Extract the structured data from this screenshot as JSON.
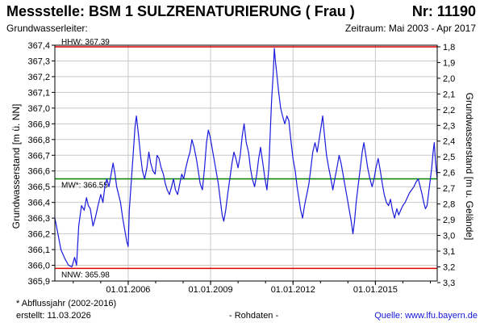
{
  "header": {
    "title": "Messstelle: BSM 1 SULZRENATURIERUNG ( Frau )",
    "nr": "Nr: 11190",
    "sub_left": "Grundwasserleiter:",
    "sub_right": "Zeitraum: Mai 2003 - Apr 2017"
  },
  "footer": {
    "note": "* Abflussjahr (2002-2016)",
    "created": "erstellt:  11.03.2026",
    "mode": "- Rohdaten -",
    "source": "Quelle: www.lfu.bayern.de"
  },
  "colors": {
    "series": "#1a1adc",
    "limit": "#e00000",
    "mean": "#008000",
    "grid": "#c8c8c8",
    "axis": "#000000"
  },
  "chart_data": {
    "type": "line",
    "ylabel_left": "Grundwasserstand [m ü. NN]",
    "ylabel_right": "Grundwasserstand [m u. Gelände]",
    "xlim": [
      2003.33,
      2017.25
    ],
    "ylim": [
      365.9,
      367.4
    ],
    "y_ticks": [
      365.9,
      366.0,
      366.1,
      366.2,
      366.3,
      366.4,
      366.5,
      366.6,
      366.7,
      366.8,
      366.9,
      367.0,
      367.1,
      367.2,
      367.3,
      367.4
    ],
    "y_tick_labels": [
      "365,9",
      "366,0",
      "366,1",
      "366,2",
      "366,3",
      "366,4",
      "366,5",
      "366,6",
      "366,7",
      "366,8",
      "366,9",
      "367,0",
      "367,1",
      "367,2",
      "367,3",
      "367,4"
    ],
    "right_ticks": [
      1.8,
      1.9,
      2.0,
      2.1,
      2.2,
      2.3,
      2.4,
      2.5,
      2.6,
      2.7,
      2.8,
      2.9,
      3.0,
      3.1,
      3.2,
      3.3
    ],
    "right_tick_labels": [
      "1,8",
      "1,9",
      "2,0",
      "2,1",
      "2,2",
      "2,3",
      "2,4",
      "2,5",
      "2,6",
      "2,7",
      "2,8",
      "2,9",
      "3,0",
      "3,1",
      "3,2",
      "3,3"
    ],
    "right_reference": 369.19,
    "x_ticks": [
      2006.0,
      2009.0,
      2012.0,
      2015.0
    ],
    "x_tick_labels": [
      "01.01.2006",
      "01.01.2009",
      "01.01.2012",
      "01.01.2015"
    ],
    "x_minor_ticks": [
      2004,
      2005,
      2006,
      2007,
      2008,
      2009,
      2010,
      2011,
      2012,
      2013,
      2014,
      2015,
      2016,
      2017
    ],
    "grid": true,
    "hlines": [
      {
        "label": "HHW: 367.39",
        "value": 367.39,
        "color": "#e00000"
      },
      {
        "label": "MW*: 366.55",
        "value": 366.55,
        "color": "#008000"
      },
      {
        "label": "NNW: 365.98",
        "value": 365.98,
        "color": "#e00000"
      }
    ],
    "series": [
      {
        "color": "#1a1adc",
        "points": [
          [
            2003.33,
            366.3
          ],
          [
            2003.42,
            366.22
          ],
          [
            2003.55,
            366.1
          ],
          [
            2003.7,
            366.04
          ],
          [
            2003.83,
            366.0
          ],
          [
            2003.95,
            365.99
          ],
          [
            2004.05,
            366.05
          ],
          [
            2004.12,
            366.0
          ],
          [
            2004.2,
            366.25
          ],
          [
            2004.3,
            366.38
          ],
          [
            2004.4,
            366.35
          ],
          [
            2004.48,
            366.43
          ],
          [
            2004.55,
            366.38
          ],
          [
            2004.62,
            366.36
          ],
          [
            2004.72,
            366.25
          ],
          [
            2004.8,
            366.3
          ],
          [
            2004.9,
            366.38
          ],
          [
            2005.0,
            366.45
          ],
          [
            2005.08,
            366.4
          ],
          [
            2005.15,
            366.5
          ],
          [
            2005.22,
            366.55
          ],
          [
            2005.3,
            366.5
          ],
          [
            2005.38,
            366.58
          ],
          [
            2005.45,
            366.65
          ],
          [
            2005.52,
            366.58
          ],
          [
            2005.58,
            366.5
          ],
          [
            2005.65,
            366.45
          ],
          [
            2005.72,
            366.4
          ],
          [
            2005.8,
            366.3
          ],
          [
            2005.88,
            366.22
          ],
          [
            2005.95,
            366.15
          ],
          [
            2006.0,
            366.12
          ],
          [
            2006.04,
            366.35
          ],
          [
            2006.1,
            366.5
          ],
          [
            2006.18,
            366.7
          ],
          [
            2006.25,
            366.88
          ],
          [
            2006.3,
            366.95
          ],
          [
            2006.38,
            366.82
          ],
          [
            2006.45,
            366.7
          ],
          [
            2006.52,
            366.6
          ],
          [
            2006.6,
            366.55
          ],
          [
            2006.68,
            366.62
          ],
          [
            2006.75,
            366.72
          ],
          [
            2006.82,
            366.65
          ],
          [
            2006.9,
            366.6
          ],
          [
            2006.98,
            366.58
          ],
          [
            2007.05,
            366.7
          ],
          [
            2007.12,
            366.68
          ],
          [
            2007.2,
            366.62
          ],
          [
            2007.28,
            366.58
          ],
          [
            2007.35,
            366.52
          ],
          [
            2007.42,
            366.48
          ],
          [
            2007.5,
            366.45
          ],
          [
            2007.58,
            366.5
          ],
          [
            2007.65,
            366.55
          ],
          [
            2007.72,
            366.48
          ],
          [
            2007.8,
            366.45
          ],
          [
            2007.88,
            366.52
          ],
          [
            2007.95,
            366.58
          ],
          [
            2008.02,
            366.55
          ],
          [
            2008.1,
            366.62
          ],
          [
            2008.18,
            366.68
          ],
          [
            2008.25,
            366.72
          ],
          [
            2008.32,
            366.8
          ],
          [
            2008.4,
            366.75
          ],
          [
            2008.48,
            366.68
          ],
          [
            2008.55,
            366.6
          ],
          [
            2008.62,
            366.52
          ],
          [
            2008.7,
            366.48
          ],
          [
            2008.78,
            366.62
          ],
          [
            2008.85,
            366.78
          ],
          [
            2008.92,
            366.86
          ],
          [
            2008.98,
            366.82
          ],
          [
            2009.05,
            366.75
          ],
          [
            2009.12,
            366.68
          ],
          [
            2009.2,
            366.6
          ],
          [
            2009.28,
            366.52
          ],
          [
            2009.35,
            366.42
          ],
          [
            2009.42,
            366.32
          ],
          [
            2009.48,
            366.28
          ],
          [
            2009.55,
            366.35
          ],
          [
            2009.62,
            366.45
          ],
          [
            2009.7,
            366.55
          ],
          [
            2009.78,
            366.65
          ],
          [
            2009.85,
            366.72
          ],
          [
            2009.92,
            366.68
          ],
          [
            2010.0,
            366.62
          ],
          [
            2010.08,
            366.7
          ],
          [
            2010.15,
            366.82
          ],
          [
            2010.22,
            366.9
          ],
          [
            2010.3,
            366.78
          ],
          [
            2010.38,
            366.72
          ],
          [
            2010.45,
            366.62
          ],
          [
            2010.52,
            366.55
          ],
          [
            2010.6,
            366.5
          ],
          [
            2010.68,
            366.58
          ],
          [
            2010.75,
            366.68
          ],
          [
            2010.82,
            366.75
          ],
          [
            2010.9,
            366.65
          ],
          [
            2010.98,
            366.55
          ],
          [
            2011.05,
            366.48
          ],
          [
            2011.12,
            366.62
          ],
          [
            2011.18,
            366.88
          ],
          [
            2011.22,
            367.05
          ],
          [
            2011.28,
            367.22
          ],
          [
            2011.32,
            367.38
          ],
          [
            2011.36,
            367.3
          ],
          [
            2011.42,
            367.2
          ],
          [
            2011.48,
            367.1
          ],
          [
            2011.55,
            367.0
          ],
          [
            2011.62,
            366.95
          ],
          [
            2011.7,
            366.9
          ],
          [
            2011.78,
            366.95
          ],
          [
            2011.85,
            366.92
          ],
          [
            2011.92,
            366.8
          ],
          [
            2012.0,
            366.68
          ],
          [
            2012.08,
            366.6
          ],
          [
            2012.15,
            366.5
          ],
          [
            2012.22,
            366.42
          ],
          [
            2012.28,
            366.35
          ],
          [
            2012.35,
            366.3
          ],
          [
            2012.42,
            366.38
          ],
          [
            2012.5,
            366.45
          ],
          [
            2012.58,
            366.52
          ],
          [
            2012.65,
            366.62
          ],
          [
            2012.72,
            366.72
          ],
          [
            2012.8,
            366.78
          ],
          [
            2012.88,
            366.72
          ],
          [
            2012.95,
            366.8
          ],
          [
            2013.02,
            366.88
          ],
          [
            2013.08,
            366.95
          ],
          [
            2013.15,
            366.82
          ],
          [
            2013.22,
            366.7
          ],
          [
            2013.3,
            366.62
          ],
          [
            2013.38,
            366.55
          ],
          [
            2013.45,
            366.48
          ],
          [
            2013.52,
            366.55
          ],
          [
            2013.6,
            366.62
          ],
          [
            2013.68,
            366.7
          ],
          [
            2013.75,
            366.65
          ],
          [
            2013.82,
            366.58
          ],
          [
            2013.9,
            366.5
          ],
          [
            2013.98,
            366.42
          ],
          [
            2014.05,
            366.35
          ],
          [
            2014.12,
            366.28
          ],
          [
            2014.18,
            366.2
          ],
          [
            2014.24,
            366.28
          ],
          [
            2014.3,
            366.4
          ],
          [
            2014.38,
            366.52
          ],
          [
            2014.45,
            366.62
          ],
          [
            2014.52,
            366.72
          ],
          [
            2014.58,
            366.78
          ],
          [
            2014.65,
            366.7
          ],
          [
            2014.72,
            366.62
          ],
          [
            2014.8,
            366.55
          ],
          [
            2014.88,
            366.5
          ],
          [
            2014.95,
            366.55
          ],
          [
            2015.02,
            366.62
          ],
          [
            2015.1,
            366.68
          ],
          [
            2015.18,
            366.6
          ],
          [
            2015.25,
            366.52
          ],
          [
            2015.32,
            366.45
          ],
          [
            2015.4,
            366.4
          ],
          [
            2015.48,
            366.38
          ],
          [
            2015.55,
            366.42
          ],
          [
            2015.62,
            366.35
          ],
          [
            2015.7,
            366.3
          ],
          [
            2015.78,
            366.36
          ],
          [
            2015.85,
            366.32
          ],
          [
            2015.92,
            366.35
          ],
          [
            2016.0,
            366.38
          ],
          [
            2016.08,
            366.4
          ],
          [
            2016.16,
            366.43
          ],
          [
            2016.24,
            366.46
          ],
          [
            2016.32,
            366.48
          ],
          [
            2016.4,
            366.5
          ],
          [
            2016.48,
            366.53
          ],
          [
            2016.56,
            366.55
          ],
          [
            2016.63,
            366.5
          ],
          [
            2016.7,
            366.45
          ],
          [
            2016.76,
            366.4
          ],
          [
            2016.82,
            366.36
          ],
          [
            2016.88,
            366.38
          ],
          [
            2016.93,
            366.45
          ],
          [
            2016.98,
            366.52
          ],
          [
            2017.05,
            366.62
          ],
          [
            2017.1,
            366.72
          ],
          [
            2017.14,
            366.78
          ],
          [
            2017.18,
            366.68
          ],
          [
            2017.22,
            366.6
          ],
          [
            2017.25,
            366.55
          ]
        ]
      }
    ]
  }
}
